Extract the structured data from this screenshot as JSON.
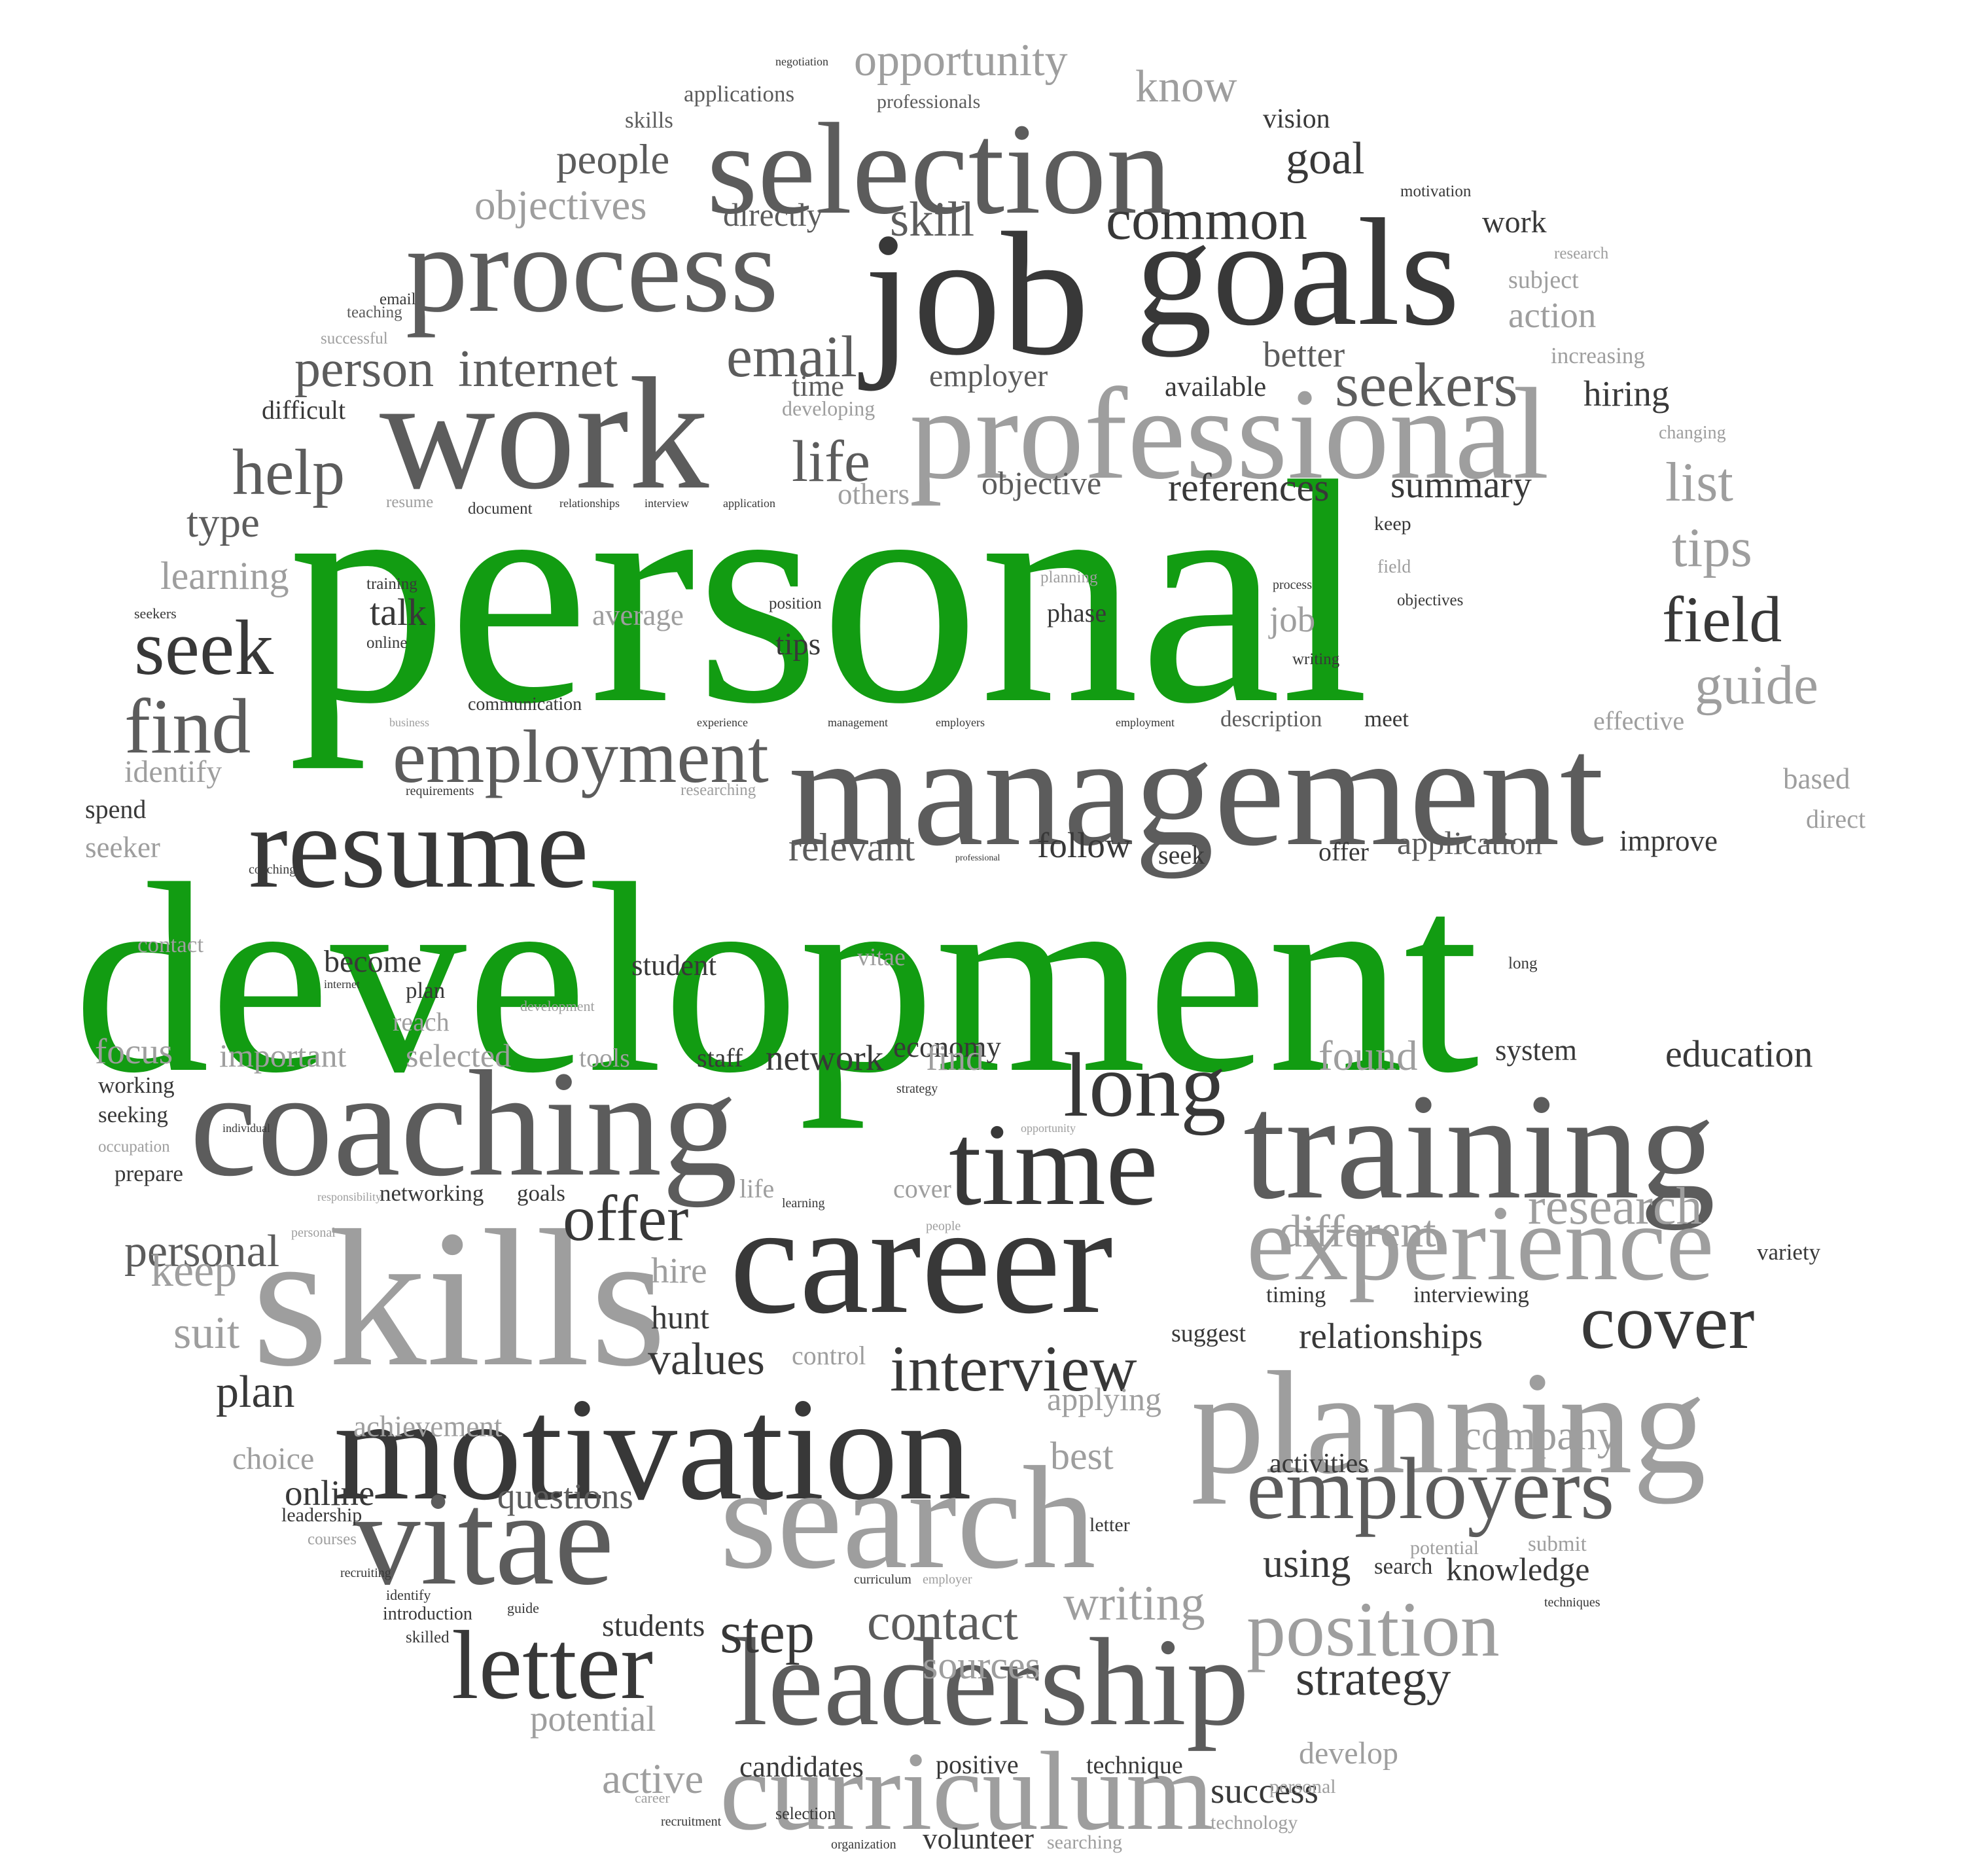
{
  "colors": {
    "accent": "#129c12",
    "dark": "#383838",
    "mid": "#5c5c5c",
    "soft": "#7a7a7a",
    "light": "#9e9e9e"
  },
  "words": [
    {
      "text": "personal",
      "tone": "accent"
    },
    {
      "text": "development",
      "tone": "accent"
    },
    {
      "text": "management",
      "tone": "mid"
    },
    {
      "text": "training",
      "tone": "mid"
    },
    {
      "text": "coaching",
      "tone": "mid"
    },
    {
      "text": "career",
      "tone": "dark"
    },
    {
      "text": "skills",
      "tone": "light"
    },
    {
      "text": "motivation",
      "tone": "dark"
    },
    {
      "text": "search",
      "tone": "light"
    },
    {
      "text": "planning",
      "tone": "light"
    },
    {
      "text": "leadership",
      "tone": "mid"
    },
    {
      "text": "curriculum",
      "tone": "light"
    },
    {
      "text": "selection",
      "tone": "mid"
    },
    {
      "text": "job",
      "tone": "dark"
    },
    {
      "text": "goals",
      "tone": "dark"
    },
    {
      "text": "process",
      "tone": "mid"
    },
    {
      "text": "work",
      "tone": "mid"
    },
    {
      "text": "professional",
      "tone": "light"
    },
    {
      "text": "vitae",
      "tone": "mid"
    },
    {
      "text": "experience",
      "tone": "light"
    },
    {
      "text": "time",
      "tone": "dark"
    },
    {
      "text": "resume",
      "tone": "dark"
    },
    {
      "text": "employers",
      "tone": "mid"
    },
    {
      "text": "position",
      "tone": "light"
    },
    {
      "text": "letter",
      "tone": "dark"
    },
    {
      "text": "long",
      "tone": "dark"
    },
    {
      "text": "interview",
      "tone": "dark"
    },
    {
      "text": "employment",
      "tone": "mid"
    },
    {
      "text": "seekers",
      "tone": "mid"
    },
    {
      "text": "common",
      "tone": "dark"
    },
    {
      "text": "internet",
      "tone": "mid"
    },
    {
      "text": "person",
      "tone": "mid"
    },
    {
      "text": "email",
      "tone": "mid"
    },
    {
      "text": "life",
      "tone": "mid"
    },
    {
      "text": "help",
      "tone": "mid"
    },
    {
      "text": "seek",
      "tone": "dark"
    },
    {
      "text": "find",
      "tone": "mid"
    },
    {
      "text": "field",
      "tone": "dark"
    },
    {
      "text": "guide",
      "tone": "light"
    },
    {
      "text": "tips",
      "tone": "light"
    },
    {
      "text": "list",
      "tone": "light"
    },
    {
      "text": "cover",
      "tone": "dark"
    },
    {
      "text": "research",
      "tone": "light"
    },
    {
      "text": "different",
      "tone": "light"
    },
    {
      "text": "offer",
      "tone": "dark"
    },
    {
      "text": "personal",
      "tone": "mid"
    },
    {
      "text": "step",
      "tone": "dark"
    },
    {
      "text": "contact",
      "tone": "mid"
    },
    {
      "text": "writing",
      "tone": "light"
    },
    {
      "text": "sources",
      "tone": "light"
    },
    {
      "text": "strategy",
      "tone": "dark"
    },
    {
      "text": "company",
      "tone": "light"
    },
    {
      "text": "relationships",
      "tone": "dark"
    },
    {
      "text": "knowledge",
      "tone": "dark"
    },
    {
      "text": "using",
      "tone": "dark"
    },
    {
      "text": "search",
      "tone": "dark"
    },
    {
      "text": "success",
      "tone": "dark"
    },
    {
      "text": "develop",
      "tone": "light"
    },
    {
      "text": "active",
      "tone": "light"
    },
    {
      "text": "potential",
      "tone": "light"
    },
    {
      "text": "candidates",
      "tone": "dark"
    },
    {
      "text": "positive",
      "tone": "dark"
    },
    {
      "text": "technique",
      "tone": "dark"
    },
    {
      "text": "volunteer",
      "tone": "dark"
    },
    {
      "text": "searching",
      "tone": "light"
    },
    {
      "text": "organization",
      "tone": "dark"
    },
    {
      "text": "students",
      "tone": "dark"
    },
    {
      "text": "questions",
      "tone": "mid"
    },
    {
      "text": "online",
      "tone": "dark"
    },
    {
      "text": "plan",
      "tone": "dark"
    },
    {
      "text": "choice",
      "tone": "light"
    },
    {
      "text": "achievement",
      "tone": "light"
    },
    {
      "text": "values",
      "tone": "dark"
    },
    {
      "text": "control",
      "tone": "light"
    },
    {
      "text": "applying",
      "tone": "light"
    },
    {
      "text": "best",
      "tone": "light"
    },
    {
      "text": "activities",
      "tone": "dark"
    },
    {
      "text": "letter",
      "tone": "dark"
    },
    {
      "text": "hire",
      "tone": "light"
    },
    {
      "text": "hunt",
      "tone": "dark"
    },
    {
      "text": "keep",
      "tone": "light"
    },
    {
      "text": "suit",
      "tone": "light"
    },
    {
      "text": "suggest",
      "tone": "dark"
    },
    {
      "text": "timing",
      "tone": "dark"
    },
    {
      "text": "interviewing",
      "tone": "dark"
    },
    {
      "text": "variety",
      "tone": "dark"
    },
    {
      "text": "networking",
      "tone": "dark"
    },
    {
      "text": "goals",
      "tone": "dark"
    },
    {
      "text": "life",
      "tone": "light"
    },
    {
      "text": "cover",
      "tone": "light"
    },
    {
      "text": "economy",
      "tone": "dark"
    },
    {
      "text": "found",
      "tone": "light"
    },
    {
      "text": "system",
      "tone": "dark"
    },
    {
      "text": "education",
      "tone": "dark"
    },
    {
      "text": "network",
      "tone": "dark"
    },
    {
      "text": "find",
      "tone": "light"
    },
    {
      "text": "staff",
      "tone": "dark"
    },
    {
      "text": "tools",
      "tone": "light"
    },
    {
      "text": "selected",
      "tone": "light"
    },
    {
      "text": "important",
      "tone": "light"
    },
    {
      "text": "focus",
      "tone": "light"
    },
    {
      "text": "working",
      "tone": "dark"
    },
    {
      "text": "seeking",
      "tone": "dark"
    },
    {
      "text": "occupation",
      "tone": "light"
    },
    {
      "text": "prepare",
      "tone": "dark"
    },
    {
      "text": "become",
      "tone": "dark"
    },
    {
      "text": "plan",
      "tone": "dark"
    },
    {
      "text": "reach",
      "tone": "light"
    },
    {
      "text": "student",
      "tone": "dark"
    },
    {
      "text": "vitae",
      "tone": "light"
    },
    {
      "text": "relevant",
      "tone": "mid"
    },
    {
      "text": "follow",
      "tone": "dark"
    },
    {
      "text": "seek",
      "tone": "dark"
    },
    {
      "text": "offer",
      "tone": "dark"
    },
    {
      "text": "application",
      "tone": "mid"
    },
    {
      "text": "improve",
      "tone": "dark"
    },
    {
      "text": "based",
      "tone": "light"
    },
    {
      "text": "direct",
      "tone": "light"
    },
    {
      "text": "effective",
      "tone": "light"
    },
    {
      "text": "meet",
      "tone": "dark"
    },
    {
      "text": "description",
      "tone": "mid"
    },
    {
      "text": "spend",
      "tone": "dark"
    },
    {
      "text": "seeker",
      "tone": "light"
    },
    {
      "text": "identify",
      "tone": "light"
    },
    {
      "text": "learning",
      "tone": "light"
    },
    {
      "text": "type",
      "tone": "mid"
    },
    {
      "text": "talk",
      "tone": "dark"
    },
    {
      "text": "average",
      "tone": "light"
    },
    {
      "text": "tips",
      "tone": "dark"
    },
    {
      "text": "phase",
      "tone": "dark"
    },
    {
      "text": "job",
      "tone": "light"
    },
    {
      "text": "keep",
      "tone": "dark"
    },
    {
      "text": "field",
      "tone": "light"
    },
    {
      "text": "summary",
      "tone": "dark"
    },
    {
      "text": "references",
      "tone": "dark"
    },
    {
      "text": "objective",
      "tone": "mid"
    },
    {
      "text": "others",
      "tone": "light"
    },
    {
      "text": "employer",
      "tone": "mid"
    },
    {
      "text": "available",
      "tone": "dark"
    },
    {
      "text": "hiring",
      "tone": "dark"
    },
    {
      "text": "better",
      "tone": "mid"
    },
    {
      "text": "increasing",
      "tone": "light"
    },
    {
      "text": "action",
      "tone": "light"
    },
    {
      "text": "subject",
      "tone": "light"
    },
    {
      "text": "work",
      "tone": "dark"
    },
    {
      "text": "goal",
      "tone": "dark"
    },
    {
      "text": "skill",
      "tone": "mid"
    },
    {
      "text": "directly",
      "tone": "mid"
    },
    {
      "text": "people",
      "tone": "mid"
    },
    {
      "text": "objectives",
      "tone": "light"
    },
    {
      "text": "skills",
      "tone": "mid"
    },
    {
      "text": "applications",
      "tone": "mid"
    },
    {
      "text": "opportunity",
      "tone": "light"
    },
    {
      "text": "know",
      "tone": "light"
    },
    {
      "text": "vision",
      "tone": "dark"
    },
    {
      "text": "professionals",
      "tone": "mid"
    },
    {
      "text": "difficult",
      "tone": "dark"
    },
    {
      "text": "time",
      "tone": "mid"
    },
    {
      "text": "developing",
      "tone": "light"
    },
    {
      "text": "email",
      "tone": "dark"
    },
    {
      "text": "teaching",
      "tone": "mid"
    },
    {
      "text": "successful",
      "tone": "light"
    },
    {
      "text": "negotiation",
      "tone": "dark"
    },
    {
      "text": "motivation",
      "tone": "dark"
    },
    {
      "text": "research",
      "tone": "light"
    },
    {
      "text": "changing",
      "tone": "light"
    },
    {
      "text": "resume",
      "tone": "light"
    },
    {
      "text": "document",
      "tone": "dark"
    },
    {
      "text": "relationships",
      "tone": "dark"
    },
    {
      "text": "interview",
      "tone": "dark"
    },
    {
      "text": "application",
      "tone": "dark"
    },
    {
      "text": "training",
      "tone": "dark"
    },
    {
      "text": "planning",
      "tone": "light"
    },
    {
      "text": "position",
      "tone": "dark"
    },
    {
      "text": "process",
      "tone": "dark"
    },
    {
      "text": "writing",
      "tone": "dark"
    },
    {
      "text": "objectives",
      "tone": "dark"
    },
    {
      "text": "seekers",
      "tone": "dark"
    },
    {
      "text": "online",
      "tone": "dark"
    },
    {
      "text": "communication",
      "tone": "dark"
    },
    {
      "text": "business",
      "tone": "light"
    },
    {
      "text": "experience",
      "tone": "dark"
    },
    {
      "text": "management",
      "tone": "dark"
    },
    {
      "text": "employers",
      "tone": "dark"
    },
    {
      "text": "employment",
      "tone": "dark"
    },
    {
      "text": "researching",
      "tone": "light"
    },
    {
      "text": "requirements",
      "tone": "dark"
    },
    {
      "text": "coaching",
      "tone": "dark"
    },
    {
      "text": "professional",
      "tone": "dark"
    },
    {
      "text": "contact",
      "tone": "light"
    },
    {
      "text": "internet",
      "tone": "dark"
    },
    {
      "text": "development",
      "tone": "light"
    },
    {
      "text": "long",
      "tone": "dark"
    },
    {
      "text": "strategy",
      "tone": "dark"
    },
    {
      "text": "individual",
      "tone": "dark"
    },
    {
      "text": "responsibility",
      "tone": "light"
    },
    {
      "text": "opportunity",
      "tone": "light"
    },
    {
      "text": "learning",
      "tone": "dark"
    },
    {
      "text": "personal",
      "tone": "light"
    },
    {
      "text": "people",
      "tone": "light"
    },
    {
      "text": "leadership",
      "tone": "dark"
    },
    {
      "text": "courses",
      "tone": "light"
    },
    {
      "text": "recruiting",
      "tone": "dark"
    },
    {
      "text": "identify",
      "tone": "dark"
    },
    {
      "text": "introduction",
      "tone": "dark"
    },
    {
      "text": "skilled",
      "tone": "dark"
    },
    {
      "text": "guide",
      "tone": "dark"
    },
    {
      "text": "curriculum",
      "tone": "dark"
    },
    {
      "text": "employer",
      "tone": "light"
    },
    {
      "text": "potential",
      "tone": "light"
    },
    {
      "text": "submit",
      "tone": "light"
    },
    {
      "text": "techniques",
      "tone": "dark"
    },
    {
      "text": "personal",
      "tone": "light"
    },
    {
      "text": "technology",
      "tone": "light"
    },
    {
      "text": "career",
      "tone": "light"
    },
    {
      "text": "recruitment",
      "tone": "dark"
    },
    {
      "text": "selection",
      "tone": "dark"
    },
    {
      "text": "coaching",
      "tone": "dark"
    }
  ]
}
